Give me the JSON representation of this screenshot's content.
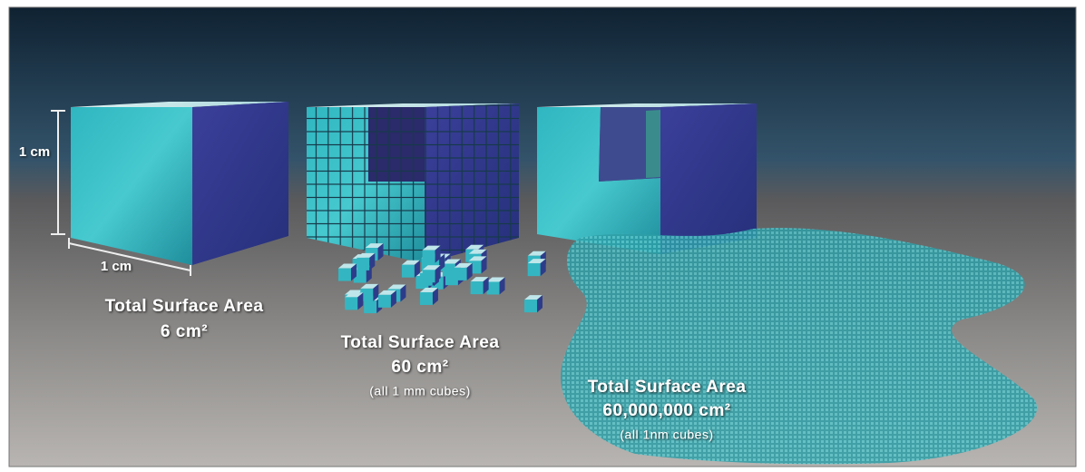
{
  "dimensions": {
    "height": "1 cm",
    "width": "1 cm"
  },
  "panels": [
    {
      "title": "Total Surface Area",
      "area": "6 cm²"
    },
    {
      "title": "Total Surface Area",
      "area": "60 cm²",
      "note": "(all 1 mm cubes)"
    },
    {
      "title": "Total Surface Area",
      "area": "60,000,000 cm²",
      "note": "(all 1nm cubes)"
    }
  ]
}
